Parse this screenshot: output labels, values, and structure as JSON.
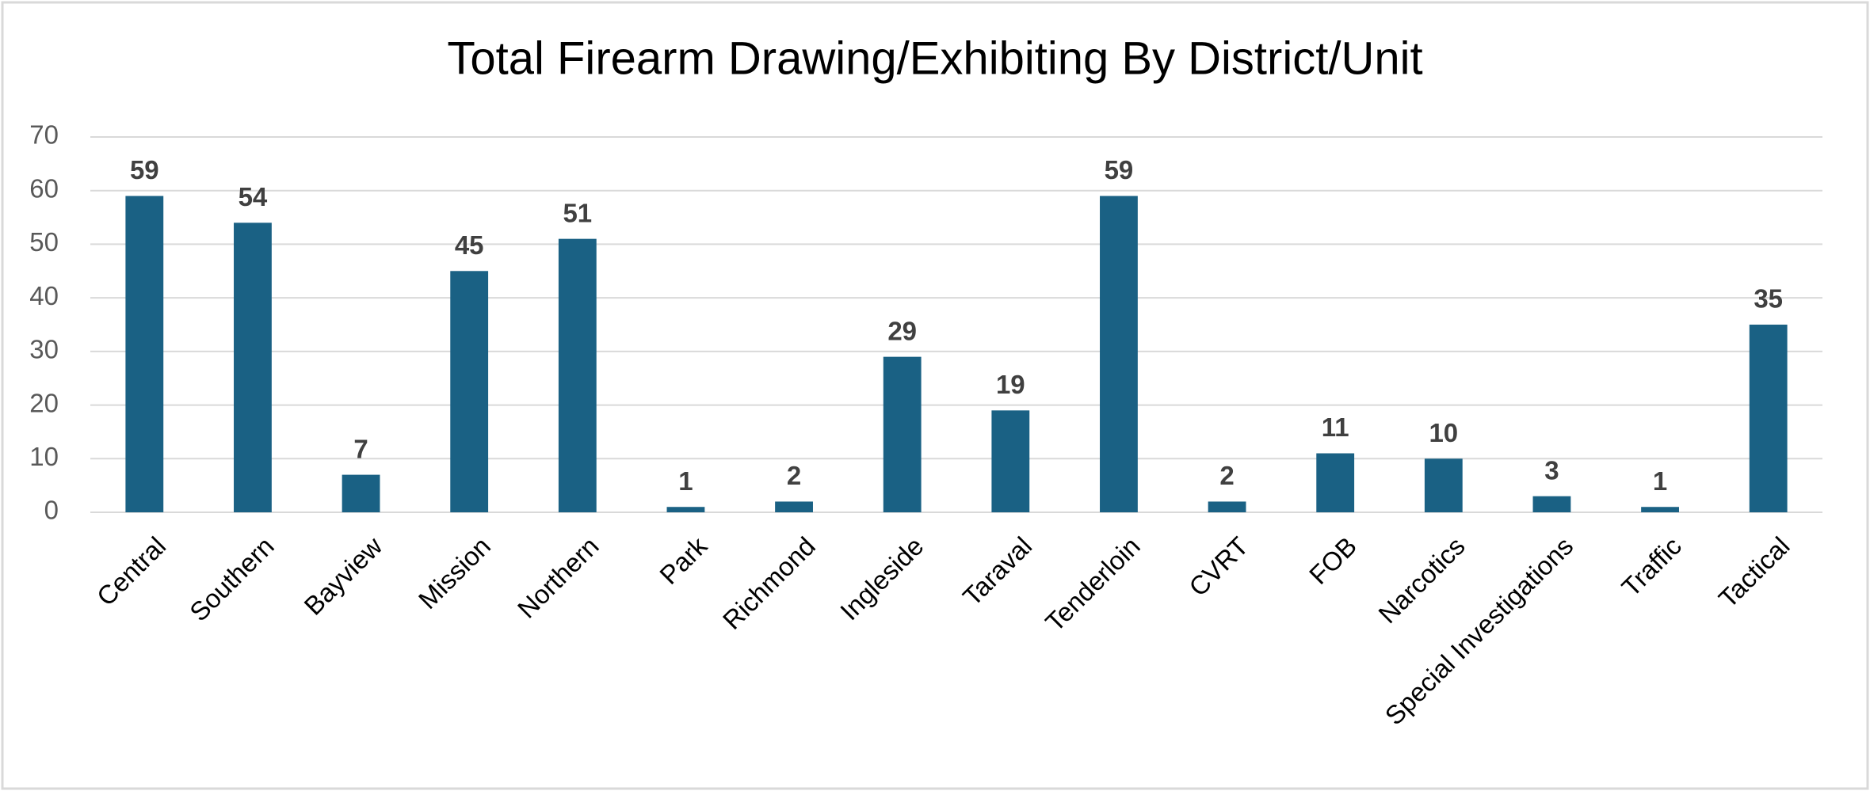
{
  "chart_data": {
    "type": "bar",
    "title": "Total Firearm Drawing/Exhibiting By District/Unit",
    "categories": [
      "Central",
      "Southern",
      "Bayview",
      "Mission",
      "Northern",
      "Park",
      "Richmond",
      "Ingleside",
      "Taraval",
      "Tenderloin",
      "CVRT",
      "FOB",
      "Narcotics",
      "Special Investigations",
      "Traffic",
      "Tactical"
    ],
    "values": [
      59,
      54,
      7,
      45,
      51,
      1,
      2,
      29,
      19,
      59,
      2,
      11,
      10,
      3,
      1,
      35
    ],
    "color": "#1a6184",
    "ylim": [
      0,
      70
    ],
    "yticks": [
      0,
      10,
      20,
      30,
      40,
      50,
      60,
      70
    ],
    "grid": true,
    "data_labels": true
  }
}
